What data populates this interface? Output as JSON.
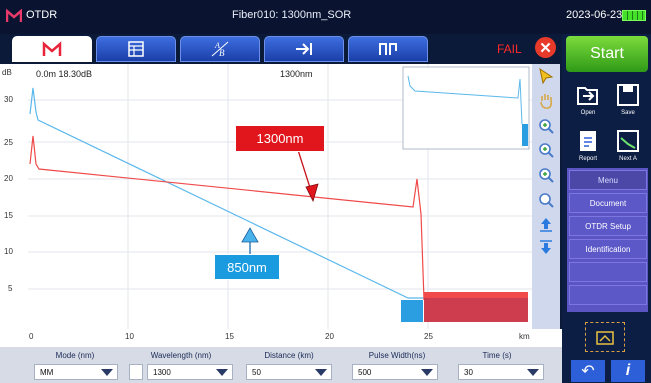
{
  "app": {
    "title": "OTDR",
    "file": "Fiber010: 1300nm_SOR",
    "date": "2023-06-23"
  },
  "tabs": [
    "trace-icon",
    "table-icon",
    "ab-icon",
    "arrow-right-bar-icon",
    "splice-icon"
  ],
  "status": {
    "result": "FAIL"
  },
  "sidebar": {
    "start_label": "Start",
    "open_label": "Open",
    "save_label": "Save",
    "report_label": "Report",
    "next_label": "Next A",
    "menu_title": "Menu",
    "menu_items": [
      "Document",
      "OTDR Setup",
      "Identification",
      "",
      ""
    ]
  },
  "plot": {
    "y_unit": "dB",
    "cursor_info": "0.0m  18.30dB",
    "wavelength_label": "1300nm",
    "x_unit": "km",
    "y_ticks": [
      "30",
      "25",
      "20",
      "15",
      "10",
      "5"
    ],
    "x_ticks": [
      "0",
      "10",
      "15",
      "20",
      "25"
    ]
  },
  "callouts": {
    "red": "1300nm",
    "blue": "850nm"
  },
  "params": [
    {
      "label": "Mode (nm)",
      "value": "MM"
    },
    {
      "label": "Wavelength (nm)",
      "value": "1300"
    },
    {
      "label": "Distance (km)",
      "value": "50"
    },
    {
      "label": "Pulse Width(ns)",
      "value": "500"
    },
    {
      "label": "Time (s)",
      "value": "30"
    }
  ],
  "colors": {
    "trace_1300": "#f04a4a",
    "trace_850": "#5ab8ec",
    "accent": "#2d5fd8",
    "fail": "#ff2a2a",
    "start": "#4fb828"
  }
}
